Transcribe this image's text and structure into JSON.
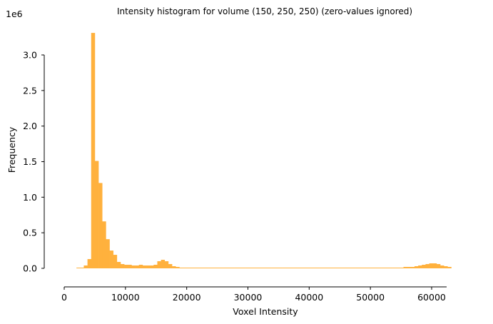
{
  "chart_data": {
    "type": "bar",
    "title": "Intensity histogram for volume (150, 250, 250) (zero-values ignored)",
    "xlabel": "Voxel Intensity",
    "ylabel": "Frequency",
    "y_offset_label": "1e6",
    "xlim": [
      0,
      62500
    ],
    "ylim": [
      0,
      3.3
    ],
    "x_ticks": [
      0,
      10000,
      20000,
      30000,
      40000,
      50000,
      60000
    ],
    "x_tick_labels": [
      "0",
      "10000",
      "20000",
      "30000",
      "40000",
      "50000",
      "60000"
    ],
    "y_ticks": [
      0.0,
      0.5,
      1.0,
      1.5,
      2.0,
      2.5,
      3.0
    ],
    "y_tick_labels": [
      "0.0",
      "0.5",
      "1.0",
      "1.5",
      "2.0",
      "2.5",
      "3.0"
    ],
    "grid": false,
    "bin_start": 2000,
    "bin_width": 600,
    "color": "#FFB13D",
    "values": [
      0.01,
      0.01,
      0.04,
      0.13,
      3.31,
      1.51,
      1.2,
      0.66,
      0.41,
      0.25,
      0.19,
      0.09,
      0.06,
      0.05,
      0.05,
      0.04,
      0.04,
      0.05,
      0.04,
      0.04,
      0.04,
      0.05,
      0.1,
      0.12,
      0.1,
      0.06,
      0.03,
      0.02,
      0.01,
      0.01,
      0.01,
      0.01,
      0.01,
      0.01,
      0.01,
      0.01,
      0.01,
      0.01,
      0.01,
      0.01,
      0.01,
      0.01,
      0.01,
      0.01,
      0.01,
      0.01,
      0.01,
      0.01,
      0.01,
      0.01,
      0.01,
      0.01,
      0.01,
      0.01,
      0.01,
      0.01,
      0.01,
      0.01,
      0.01,
      0.01,
      0.01,
      0.01,
      0.01,
      0.01,
      0.01,
      0.01,
      0.01,
      0.01,
      0.01,
      0.01,
      0.01,
      0.01,
      0.01,
      0.01,
      0.01,
      0.01,
      0.01,
      0.01,
      0.01,
      0.01,
      0.01,
      0.01,
      0.01,
      0.01,
      0.01,
      0.01,
      0.01,
      0.01,
      0.01,
      0.02,
      0.02,
      0.02,
      0.03,
      0.04,
      0.05,
      0.06,
      0.07,
      0.07,
      0.06,
      0.04,
      0.03,
      0.02
    ]
  }
}
